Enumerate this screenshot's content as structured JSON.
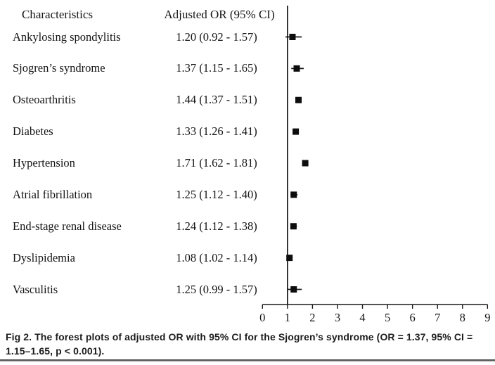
{
  "table": {
    "col_characteristics": "Characteristics",
    "col_or": "Adjusted OR (95% CI)"
  },
  "chart_data": {
    "type": "forest",
    "title": "",
    "xlabel": "",
    "columns": [
      "Characteristics",
      "Adjusted OR (95% CI)"
    ],
    "rows": [
      {
        "label": "Ankylosing spondylitis",
        "display": "1.20 (0.92 - 1.57)",
        "or": 1.2,
        "lo": 0.92,
        "hi": 1.57
      },
      {
        "label": "Sjogren’s syndrome",
        "display": "1.37 (1.15 - 1.65)",
        "or": 1.37,
        "lo": 1.15,
        "hi": 1.65
      },
      {
        "label": "Osteoarthritis",
        "display": "1.44 (1.37 - 1.51)",
        "or": 1.44,
        "lo": 1.37,
        "hi": 1.51
      },
      {
        "label": "Diabetes",
        "display": "1.33 (1.26 - 1.41)",
        "or": 1.33,
        "lo": 1.26,
        "hi": 1.41
      },
      {
        "label": "Hypertension",
        "display": "1.71 (1.62 - 1.81)",
        "or": 1.71,
        "lo": 1.62,
        "hi": 1.81
      },
      {
        "label": "Atrial fibrillation",
        "display": "1.25 (1.12 - 1.40)",
        "or": 1.25,
        "lo": 1.12,
        "hi": 1.4
      },
      {
        "label": "End-stage renal disease",
        "display": "1.24 (1.12 - 1.38)",
        "or": 1.24,
        "lo": 1.12,
        "hi": 1.38
      },
      {
        "label": "Dyslipidemia",
        "display": "1.08 (1.02 - 1.14)",
        "or": 1.08,
        "lo": 1.02,
        "hi": 1.14
      },
      {
        "label": "Vasculitis",
        "display": "1.25 (0.99 - 1.57)",
        "or": 1.25,
        "lo": 0.99,
        "hi": 1.57
      }
    ],
    "axis": {
      "min": 0,
      "max": 9,
      "ticks": [
        0,
        1,
        2,
        3,
        4,
        5,
        6,
        7,
        8,
        9
      ],
      "reference_line": 1
    },
    "legend": "none",
    "grid": false,
    "marker_color": "#0d0d0d",
    "line_color": "#1a1a1a"
  },
  "caption": {
    "text": "Fig 2. The forest plots of adjusted OR with 95% CI for the Sjogren’s syndrome (OR = 1.37, 95% CI = 1.15–1.65, p < 0.001)."
  }
}
